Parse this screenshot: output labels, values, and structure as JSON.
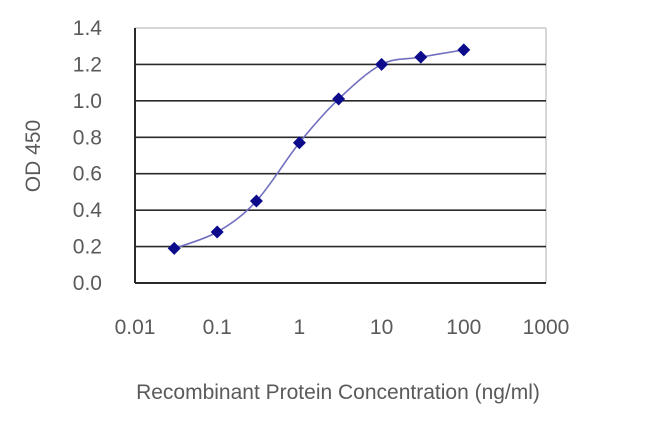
{
  "chart_data": {
    "type": "line",
    "title": "",
    "xlabel": "Recombinant Protein Concentration (ng/ml)",
    "ylabel": "OD 450",
    "xscale": "log",
    "xlim": [
      0.01,
      1000
    ],
    "ylim": [
      0.0,
      1.4
    ],
    "x_ticks": [
      "0.01",
      "0.1",
      "1",
      "10",
      "100",
      "1000"
    ],
    "y_ticks": [
      "0.0",
      "0.2",
      "0.4",
      "0.6",
      "0.8",
      "1.0",
      "1.2",
      "1.4"
    ],
    "grid": "horizontal",
    "legend": null,
    "series": [
      {
        "name": "OD 450",
        "x": [
          0.03,
          0.1,
          0.3,
          1,
          3,
          10,
          30,
          100
        ],
        "values": [
          0.19,
          0.28,
          0.45,
          0.77,
          1.01,
          1.2,
          1.24,
          1.28
        ],
        "marker": "diamond",
        "marker_color": "#0b0b8c",
        "line_color": "#7070c0"
      }
    ]
  },
  "colors": {
    "grid": "#2a2a2a",
    "axis": "#2a2a2a",
    "border": "#c8c8c8",
    "text": "#5a5a5a"
  }
}
